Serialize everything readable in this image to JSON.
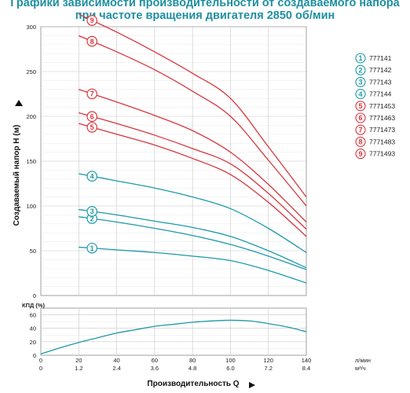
{
  "title_line1": "Графики зависимости производительности от создаваемого напора",
  "title_line2": "при частоте вращения двигателя 2850 об/мин",
  "colors": {
    "teal": "#1e9aa8",
    "red": "#d9363e",
    "grid": "#c8c8c8"
  },
  "chart_data": [
    {
      "type": "line",
      "ylabel": "Создаваемый напор H (м)",
      "xlim": [
        0,
        140
      ],
      "ylim": [
        0,
        300
      ],
      "xticks": [
        0,
        20,
        40,
        60,
        80,
        100,
        120,
        140
      ],
      "yticks": [
        0,
        50,
        100,
        150,
        200,
        250,
        300
      ],
      "series": [
        {
          "name": "777141",
          "marker": "1",
          "color": "teal",
          "x": [
            20,
            40,
            60,
            80,
            100,
            120,
            140
          ],
          "y": [
            54,
            51,
            48,
            44,
            39,
            28,
            14
          ]
        },
        {
          "name": "777142",
          "marker": "2",
          "color": "teal",
          "x": [
            20,
            40,
            60,
            80,
            100,
            120,
            140
          ],
          "y": [
            88,
            82,
            75,
            67,
            57,
            44,
            29
          ]
        },
        {
          "name": "777143",
          "marker": "3",
          "color": "teal",
          "x": [
            20,
            40,
            60,
            80,
            100,
            120,
            140
          ],
          "y": [
            96,
            90,
            83,
            76,
            66,
            50,
            31
          ]
        },
        {
          "name": "777144",
          "marker": "4",
          "color": "teal",
          "x": [
            20,
            40,
            60,
            80,
            100,
            120,
            140
          ],
          "y": [
            136,
            128,
            120,
            110,
            97,
            75,
            48
          ]
        },
        {
          "name": "7771453",
          "marker": "5",
          "color": "red",
          "x": [
            20,
            40,
            60,
            80,
            100,
            120,
            140
          ],
          "y": [
            192,
            180,
            168,
            153,
            135,
            104,
            66
          ]
        },
        {
          "name": "7771463",
          "marker": "6",
          "color": "red",
          "x": [
            20,
            40,
            60,
            80,
            100,
            120,
            140
          ],
          "y": [
            204,
            192,
            179,
            164,
            147,
            114,
            74
          ]
        },
        {
          "name": "7771473",
          "marker": "7",
          "color": "red",
          "x": [
            20,
            40,
            60,
            80,
            100,
            120,
            140
          ],
          "y": [
            230,
            216,
            201,
            184,
            160,
            124,
            82
          ]
        },
        {
          "name": "7771483",
          "marker": "8",
          "color": "red",
          "x": [
            20,
            40,
            60,
            80,
            100,
            120,
            140
          ],
          "y": [
            290,
            272,
            252,
            228,
            200,
            151,
            100
          ]
        },
        {
          "name": "7771493",
          "marker": "9",
          "color": "red",
          "x": [
            20,
            40,
            60,
            80,
            100,
            120,
            140
          ],
          "y": [
            314,
            294,
            272,
            248,
            220,
            166,
            110
          ]
        }
      ]
    },
    {
      "type": "line",
      "ylabel": "КПД (%)",
      "xlabel": "Производительность Q",
      "xlim": [
        0,
        140
      ],
      "ylim": [
        0,
        70
      ],
      "xticks": [
        0,
        20,
        40,
        60,
        80,
        100,
        120,
        140
      ],
      "yticks": [
        0,
        20,
        40,
        60
      ],
      "x2ticks": [
        "0",
        "1.2",
        "2.4",
        "3.6",
        "4.8",
        "6.0",
        "7.2",
        "8.4"
      ],
      "x_unit": "л/мин",
      "x2_unit": "м³/ч",
      "series": [
        {
          "color": "teal",
          "x": [
            0,
            10,
            20,
            30,
            40,
            50,
            60,
            70,
            80,
            90,
            100,
            110,
            120,
            130,
            140
          ],
          "y": [
            2,
            11,
            19,
            26,
            33,
            38,
            43,
            46,
            49,
            51,
            52,
            51,
            47,
            42,
            35
          ]
        }
      ]
    }
  ]
}
